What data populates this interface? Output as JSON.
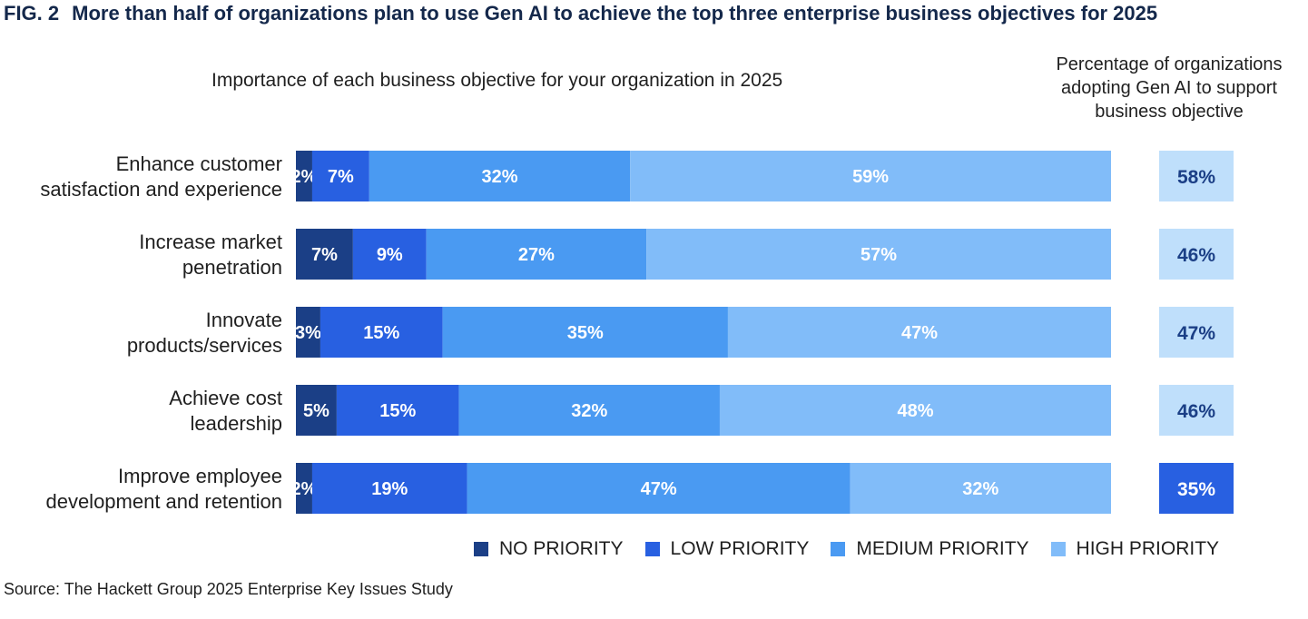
{
  "figure": {
    "label": "FIG. 2",
    "title": "More than half of organizations plan to use Gen AI to achieve the top three enterprise business objectives for 2025",
    "left_heading": "Importance of each business objective for your organization in 2025",
    "right_heading_lines": [
      "Percentage of organizations",
      "adopting Gen AI to support",
      "business objective"
    ],
    "source": "Source: The Hackett Group 2025 Enterprise Key Issues Study"
  },
  "colors": {
    "no_priority": "#1b3f86",
    "low_priority": "#2860e1",
    "medium_priority": "#4a9af2",
    "high_priority": "#81bcf9",
    "adoption_light": "#bfdffb",
    "adoption_dark": "#2860e1",
    "adoption_text_dark": "#1b3f86",
    "adoption_text_light": "#ffffff"
  },
  "legend": [
    {
      "label": "NO PRIORITY",
      "color_key": "no_priority"
    },
    {
      "label": "LOW PRIORITY",
      "color_key": "low_priority"
    },
    {
      "label": "MEDIUM PRIORITY",
      "color_key": "medium_priority"
    },
    {
      "label": "HIGH PRIORITY",
      "color_key": "high_priority"
    }
  ],
  "chart_data": {
    "type": "bar",
    "orientation": "horizontal",
    "stacked": true,
    "unit": "%",
    "categories": [
      [
        "Enhance customer",
        "satisfaction and experience"
      ],
      [
        "Increase market",
        "penetration"
      ],
      [
        "Innovate",
        "products/services"
      ],
      [
        "Achieve cost",
        "leadership"
      ],
      [
        "Improve employee",
        "development and retention"
      ]
    ],
    "series": [
      {
        "name": "NO PRIORITY",
        "color_key": "no_priority",
        "values": [
          2,
          7,
          3,
          5,
          2
        ]
      },
      {
        "name": "LOW PRIORITY",
        "color_key": "low_priority",
        "values": [
          7,
          9,
          15,
          15,
          19
        ]
      },
      {
        "name": "MEDIUM PRIORITY",
        "color_key": "medium_priority",
        "values": [
          32,
          27,
          35,
          32,
          47
        ]
      },
      {
        "name": "HIGH PRIORITY",
        "color_key": "high_priority",
        "values": [
          59,
          57,
          47,
          48,
          32
        ]
      }
    ],
    "adoption": {
      "values": [
        58,
        46,
        47,
        46,
        35
      ],
      "highlight": [
        false,
        false,
        false,
        false,
        true
      ]
    },
    "xlim": [
      0,
      100
    ],
    "grid": false,
    "legend_position": "bottom-right"
  }
}
